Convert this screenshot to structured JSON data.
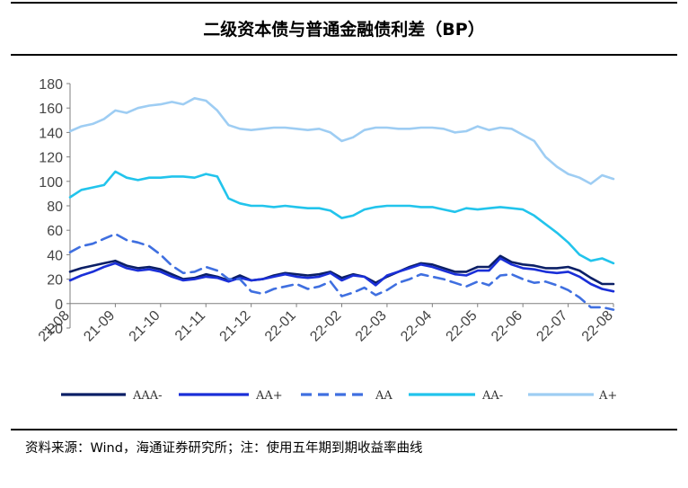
{
  "page": {
    "source_note": "资料来源：Wind，海通证券研究所；注：使用五年期到期收益率曲线"
  },
  "chart_data": {
    "type": "line",
    "title": "二级资本债与普通金融债利差（BP）",
    "xlabel": "",
    "ylabel": "",
    "ylim": [
      -20,
      180
    ],
    "yticks": [
      -20,
      0,
      20,
      40,
      60,
      80,
      100,
      120,
      140,
      160,
      180
    ],
    "grid": false,
    "legend_position": "bottom",
    "x_tick_labels": [
      "21-08",
      "21-09",
      "21-10",
      "21-11",
      "21-12",
      "22-01",
      "22-02",
      "22-03",
      "22-04",
      "22-05",
      "22-06",
      "22-07",
      "22-08"
    ],
    "x": [
      0,
      0.25,
      0.5,
      0.75,
      1,
      1.25,
      1.5,
      1.75,
      2,
      2.25,
      2.5,
      2.75,
      3,
      3.25,
      3.5,
      3.75,
      4,
      4.25,
      4.5,
      4.75,
      5,
      5.25,
      5.5,
      5.75,
      6,
      6.25,
      6.5,
      6.75,
      7,
      7.25,
      7.5,
      7.75,
      8,
      8.25,
      8.5,
      8.75,
      9,
      9.25,
      9.5,
      9.75,
      10,
      10.25,
      10.5,
      10.75,
      11,
      11.25,
      11.5,
      11.75,
      12
    ],
    "series": [
      {
        "name": "AAA-",
        "color": "#0b1f66",
        "dash": "solid",
        "values": [
          26,
          29,
          31,
          33,
          35,
          31,
          29,
          30,
          28,
          24,
          20,
          21,
          24,
          22,
          19,
          23,
          19,
          20,
          23,
          25,
          24,
          23,
          24,
          26,
          21,
          24,
          22,
          17,
          22,
          26,
          30,
          33,
          32,
          29,
          26,
          26,
          30,
          30,
          39,
          34,
          32,
          31,
          29,
          29,
          30,
          27,
          21,
          16,
          16
        ]
      },
      {
        "name": "AA+",
        "color": "#1a2fd8",
        "dash": "solid",
        "values": [
          19,
          23,
          26,
          30,
          33,
          29,
          27,
          28,
          26,
          22,
          19,
          20,
          22,
          21,
          18,
          21,
          19,
          20,
          22,
          24,
          22,
          21,
          22,
          25,
          19,
          23,
          22,
          15,
          23,
          26,
          29,
          32,
          30,
          27,
          24,
          23,
          27,
          27,
          37,
          32,
          29,
          28,
          26,
          25,
          26,
          22,
          16,
          12,
          10
        ]
      },
      {
        "name": "AA",
        "color": "#3f6fe0",
        "dash": "dashed",
        "values": [
          42,
          47,
          49,
          53,
          57,
          52,
          50,
          47,
          40,
          31,
          25,
          26,
          30,
          27,
          20,
          20,
          10,
          8,
          12,
          14,
          16,
          12,
          14,
          18,
          6,
          9,
          13,
          7,
          11,
          17,
          20,
          24,
          22,
          20,
          17,
          14,
          18,
          15,
          23,
          24,
          20,
          17,
          18,
          15,
          11,
          5,
          -3,
          -3,
          -5
        ]
      },
      {
        "name": "AA-",
        "color": "#22c4ec",
        "dash": "solid",
        "values": [
          87,
          93,
          95,
          97,
          108,
          103,
          101,
          103,
          103,
          104,
          104,
          103,
          106,
          104,
          86,
          82,
          80,
          80,
          79,
          80,
          79,
          78,
          78,
          76,
          70,
          72,
          77,
          79,
          80,
          80,
          80,
          79,
          79,
          77,
          75,
          78,
          77,
          78,
          79,
          78,
          77,
          72,
          65,
          58,
          50,
          40,
          35,
          37,
          33
        ]
      },
      {
        "name": "A+",
        "color": "#9ecdf3",
        "dash": "solid",
        "values": [
          141,
          145,
          147,
          151,
          158,
          156,
          160,
          162,
          163,
          165,
          163,
          168,
          166,
          158,
          146,
          143,
          142,
          143,
          144,
          144,
          143,
          142,
          143,
          140,
          133,
          136,
          142,
          144,
          144,
          143,
          143,
          144,
          144,
          143,
          140,
          141,
          145,
          142,
          144,
          143,
          138,
          133,
          120,
          112,
          106,
          103,
          98,
          105,
          102
        ]
      }
    ]
  }
}
